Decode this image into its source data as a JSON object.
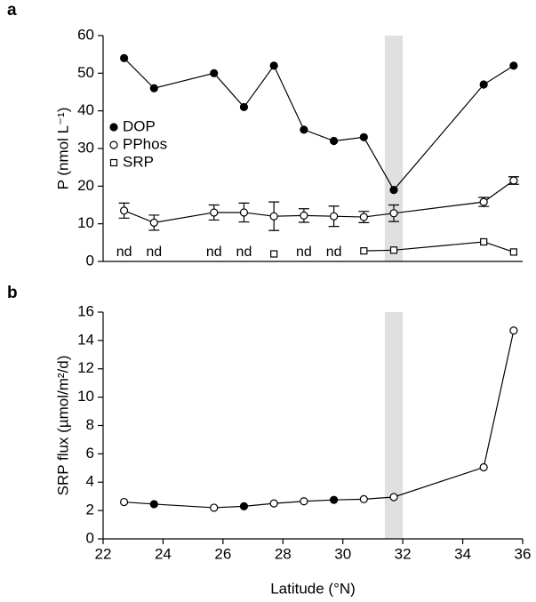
{
  "chart_data": [
    {
      "type": "line",
      "panel_label": "a",
      "ylabel": "P (nmol L⁻¹)",
      "xlim": [
        22,
        36
      ],
      "ylim": [
        0,
        60
      ],
      "yticks": [
        0,
        10,
        20,
        30,
        40,
        50,
        60
      ],
      "shade": [
        31.4,
        32.0
      ],
      "legend": "upper-left",
      "x": [
        22.7,
        23.7,
        25.7,
        26.7,
        27.7,
        28.7,
        29.7,
        30.7,
        31.7,
        34.7,
        35.7
      ],
      "series": [
        {
          "name": "DOP",
          "color": "#000000",
          "marker": "circle",
          "marker_fill": "#000000",
          "values": [
            54,
            46,
            50,
            41,
            52,
            35,
            32,
            33,
            19,
            47,
            52
          ]
        },
        {
          "name": "PPhos",
          "color": "#000000",
          "marker": "circle",
          "marker_fill": "#ffffff",
          "values": [
            13.5,
            10.3,
            13,
            13,
            12,
            12.2,
            12,
            11.8,
            12.8,
            15.8,
            21.5
          ],
          "errors": [
            2,
            2,
            2,
            2.5,
            3.8,
            1.8,
            2.7,
            1.5,
            2.2,
            1.2,
            1
          ]
        },
        {
          "name": "SRP",
          "color": "#000000",
          "marker": "square",
          "marker_fill": "#ffffff",
          "values": [
            null,
            null,
            null,
            null,
            2,
            null,
            null,
            2.8,
            3,
            5.2,
            2.5
          ],
          "value_labels": [
            "nd",
            "nd",
            "nd",
            "nd",
            null,
            "nd",
            "nd",
            null,
            null,
            null,
            null
          ]
        }
      ]
    },
    {
      "type": "line",
      "panel_label": "b",
      "ylabel": "SRP flux (µmol/m²/d)",
      "xlabel": "Latitude (°N)",
      "xlim": [
        22,
        36
      ],
      "xticks": [
        22,
        24,
        26,
        28,
        30,
        32,
        34,
        36
      ],
      "ylim": [
        0,
        16
      ],
      "yticks": [
        0,
        2,
        4,
        6,
        8,
        10,
        12,
        14,
        16
      ],
      "shade": [
        31.4,
        32.0
      ],
      "x": [
        22.7,
        23.7,
        25.7,
        26.7,
        27.7,
        28.7,
        29.7,
        30.7,
        31.7,
        34.7,
        35.7
      ],
      "series": [
        {
          "color": "#000000",
          "marker": "circle",
          "marker_fill": "#ffffff",
          "filled": [
            false,
            true,
            false,
            true,
            false,
            false,
            true,
            false,
            false,
            false,
            false
          ],
          "values": [
            2.6,
            2.45,
            2.2,
            2.3,
            2.5,
            2.65,
            2.75,
            2.8,
            2.95,
            5.05,
            14.7
          ]
        }
      ]
    }
  ]
}
